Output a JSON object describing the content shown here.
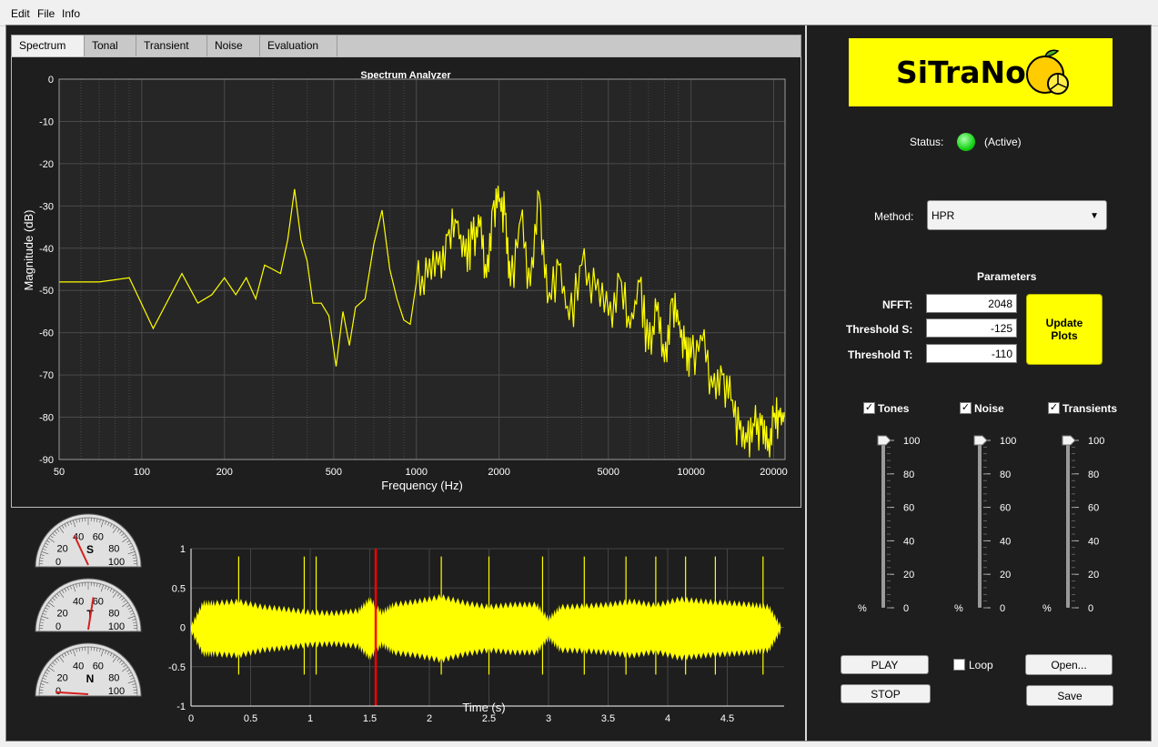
{
  "menu": {
    "items": [
      "Edit",
      "File",
      "Info"
    ]
  },
  "tabs": [
    "Spectrum",
    "Tonal",
    "Transient",
    "Noise",
    "Evaluation"
  ],
  "spectrum": {
    "title": "Spectrum Analyzer",
    "xlabel": "Frequency (Hz)",
    "ylabel": "Magnitude (dB)",
    "yticks": [
      "0",
      "-10",
      "-20",
      "-30",
      "-40",
      "-50",
      "-60",
      "-70",
      "-80",
      "-90"
    ],
    "xticks": [
      "50",
      "100",
      "200",
      "500",
      "1000",
      "2000",
      "5000",
      "10000",
      "20000"
    ],
    "line_color": "#ffff00"
  },
  "chart_data": [
    {
      "type": "line",
      "title": "Spectrum Analyzer",
      "xlabel": "Frequency (Hz)",
      "ylabel": "Magnitude (dB)",
      "xscale": "log",
      "xlim": [
        50,
        22000
      ],
      "ylim": [
        -90,
        0
      ],
      "grid": true,
      "series": [
        {
          "x": [
            50,
            60,
            70,
            90,
            110,
            140,
            160,
            180,
            200,
            220,
            240,
            260,
            280,
            300,
            320,
            340,
            360,
            380,
            400,
            420,
            450,
            480,
            510,
            540,
            570,
            600,
            650,
            700,
            750,
            800,
            850,
            900,
            950,
            1000,
            1100,
            1200,
            1300,
            1400,
            1500,
            1600,
            1700,
            1800,
            1900,
            2000,
            2100,
            2200,
            2400,
            2600,
            2800,
            3000,
            3300,
            3600,
            4000,
            4500,
            5000,
            5500,
            6000,
            6500,
            7000,
            7500,
            8000,
            8500,
            9000,
            9500,
            10000,
            11000,
            12000,
            13000,
            14000,
            15000,
            16000,
            17000,
            18000,
            19000,
            20000,
            21000,
            22000
          ],
          "y": [
            -48,
            -48,
            -48,
            -47,
            -59,
            -46,
            -53,
            -51,
            -47,
            -51,
            -47,
            -52,
            -44,
            -45,
            -46,
            -38,
            -26,
            -38,
            -43,
            -53,
            -53,
            -56,
            -68,
            -55,
            -63,
            -54,
            -52,
            -39,
            -31,
            -45,
            -52,
            -57,
            -58,
            -48,
            -47,
            -44,
            -37,
            -34,
            -42,
            -38,
            -35,
            -47,
            -30,
            -29,
            -32,
            -49,
            -33,
            -49,
            -27,
            -53,
            -44,
            -57,
            -44,
            -50,
            -56,
            -47,
            -59,
            -48,
            -64,
            -55,
            -67,
            -52,
            -58,
            -64,
            -66,
            -62,
            -73,
            -70,
            -76,
            -83,
            -86,
            -82,
            -82,
            -88,
            -80,
            -80,
            -80
          ]
        }
      ]
    },
    {
      "type": "line",
      "xlabel": "Time (s)",
      "xlim": [
        0,
        5
      ],
      "ylim": [
        -1,
        1
      ],
      "xticks": [
        0,
        0.5,
        1,
        1.5,
        2,
        2.5,
        3,
        3.5,
        4,
        4.5
      ],
      "yticks": [
        1,
        0.5,
        0,
        -0.5,
        -1
      ],
      "playhead": 1.55,
      "series": [
        {
          "x": [
            0,
            0.1,
            0.2,
            0.4,
            0.6,
            0.8,
            1.0,
            1.2,
            1.4,
            1.5,
            1.6,
            1.7,
            1.9,
            2.1,
            2.3,
            2.5,
            2.7,
            2.9,
            3.0,
            3.1,
            3.3,
            3.5,
            3.7,
            3.9,
            4.1,
            4.3,
            4.5,
            4.7,
            4.85,
            4.95
          ],
          "y": [
            0.0,
            0.3,
            0.3,
            0.32,
            0.25,
            0.22,
            0.18,
            0.17,
            0.2,
            0.35,
            0.18,
            0.28,
            0.32,
            0.38,
            0.3,
            0.25,
            0.28,
            0.28,
            0.1,
            0.25,
            0.26,
            0.28,
            0.32,
            0.27,
            0.35,
            0.32,
            0.3,
            0.28,
            0.25,
            0.0
          ]
        }
      ]
    }
  ],
  "waveform": {
    "xlabel": "Time (s)",
    "xticks": [
      "0",
      "0.5",
      "1",
      "1.5",
      "2",
      "2.5",
      "3",
      "3.5",
      "4",
      "4.5"
    ],
    "yticks": [
      "1",
      "0.5",
      "0",
      "-0.5",
      "-1"
    ],
    "color": "#ffff00",
    "playhead_color": "#ff0000"
  },
  "gauges": [
    {
      "label": "S",
      "ticks": [
        "0",
        "20",
        "40",
        "60",
        "80",
        "100"
      ],
      "value": 36
    },
    {
      "label": "T",
      "ticks": [
        "0",
        "20",
        "40",
        "60",
        "80",
        "100"
      ],
      "value": 55
    },
    {
      "label": "N",
      "ticks": [
        "0",
        "20",
        "40",
        "60",
        "80",
        "100"
      ],
      "value": 2
    }
  ],
  "logo": {
    "text": "SiTraNo",
    "bg": "#ffff00"
  },
  "status": {
    "label": "Status:",
    "value": "(Active)",
    "color": "#18d418"
  },
  "method": {
    "label": "Method:",
    "value": "HPR"
  },
  "parameters": {
    "title": "Parameters",
    "nfft_label": "NFFT:",
    "nfft": "2048",
    "ths_label": "Threshold S:",
    "ths": "-125",
    "tht_label": "Threshold T:",
    "tht": "-110",
    "update_label": "Update Plots"
  },
  "components": [
    {
      "label": "Tones",
      "checked": true,
      "level": 100
    },
    {
      "label": "Noise",
      "checked": true,
      "level": 100
    },
    {
      "label": "Transients",
      "checked": true,
      "level": 100
    }
  ],
  "slider_ticks": [
    "100",
    "80",
    "60",
    "40",
    "20",
    "0"
  ],
  "percent": "%",
  "controls": {
    "play": "PLAY",
    "stop": "STOP",
    "loop": "Loop",
    "open": "Open...",
    "save": "Save"
  }
}
